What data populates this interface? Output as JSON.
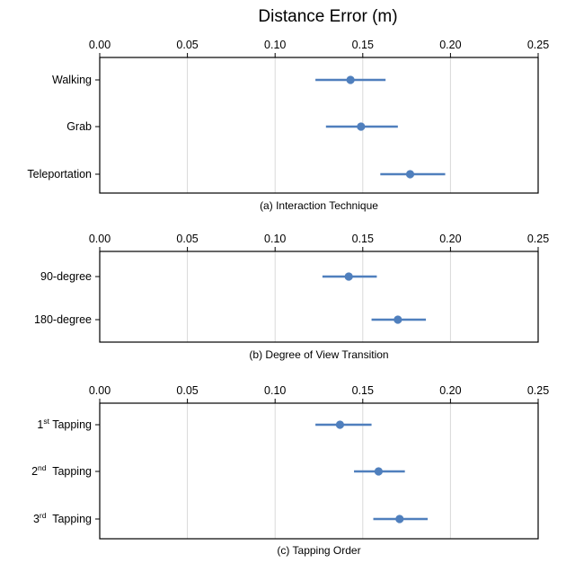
{
  "figure_title": "Distance Error (m)",
  "colors": {
    "marker": "#4f7fbd",
    "grid": "#d9d9d9",
    "frame": "#000000"
  },
  "chart_data": [
    {
      "type": "scatter",
      "errorbars": true,
      "subtitle": "(a) Interaction Technique",
      "xlim": [
        0,
        0.25
      ],
      "xticks": [
        "0.00",
        "0.05",
        "0.10",
        "0.15",
        "0.20",
        "0.25"
      ],
      "grid": true,
      "categories": [
        {
          "label": "Walking",
          "sup": "",
          "suffix": "",
          "mean": 0.143,
          "low": 0.123,
          "high": 0.163
        },
        {
          "label": "Grab",
          "sup": "",
          "suffix": "",
          "mean": 0.149,
          "low": 0.129,
          "high": 0.17
        },
        {
          "label": "Teleportation",
          "sup": "",
          "suffix": "",
          "mean": 0.177,
          "low": 0.16,
          "high": 0.197
        }
      ]
    },
    {
      "type": "scatter",
      "errorbars": true,
      "subtitle": "(b) Degree of View Transition",
      "xlim": [
        0,
        0.25
      ],
      "xticks": [
        "0.00",
        "0.05",
        "0.10",
        "0.15",
        "0.20",
        "0.25"
      ],
      "grid": true,
      "categories": [
        {
          "label": "90-degree",
          "sup": "",
          "suffix": "",
          "mean": 0.142,
          "low": 0.127,
          "high": 0.158
        },
        {
          "label": "180-degree",
          "sup": "",
          "suffix": "",
          "mean": 0.17,
          "low": 0.155,
          "high": 0.186
        }
      ]
    },
    {
      "type": "scatter",
      "errorbars": true,
      "subtitle": "(c) Tapping Order",
      "xlim": [
        0,
        0.25
      ],
      "xticks": [
        "0.00",
        "0.05",
        "0.10",
        "0.15",
        "0.20",
        "0.25"
      ],
      "grid": true,
      "categories": [
        {
          "label": "1",
          "sup": "st",
          "suffix": " Tapping",
          "mean": 0.137,
          "low": 0.123,
          "high": 0.155
        },
        {
          "label": "2",
          "sup": "nd",
          "suffix": "  Tapping",
          "mean": 0.159,
          "low": 0.145,
          "high": 0.174
        },
        {
          "label": "3",
          "sup": "rd",
          "suffix": "  Tapping",
          "mean": 0.171,
          "low": 0.156,
          "high": 0.187
        }
      ]
    }
  ]
}
